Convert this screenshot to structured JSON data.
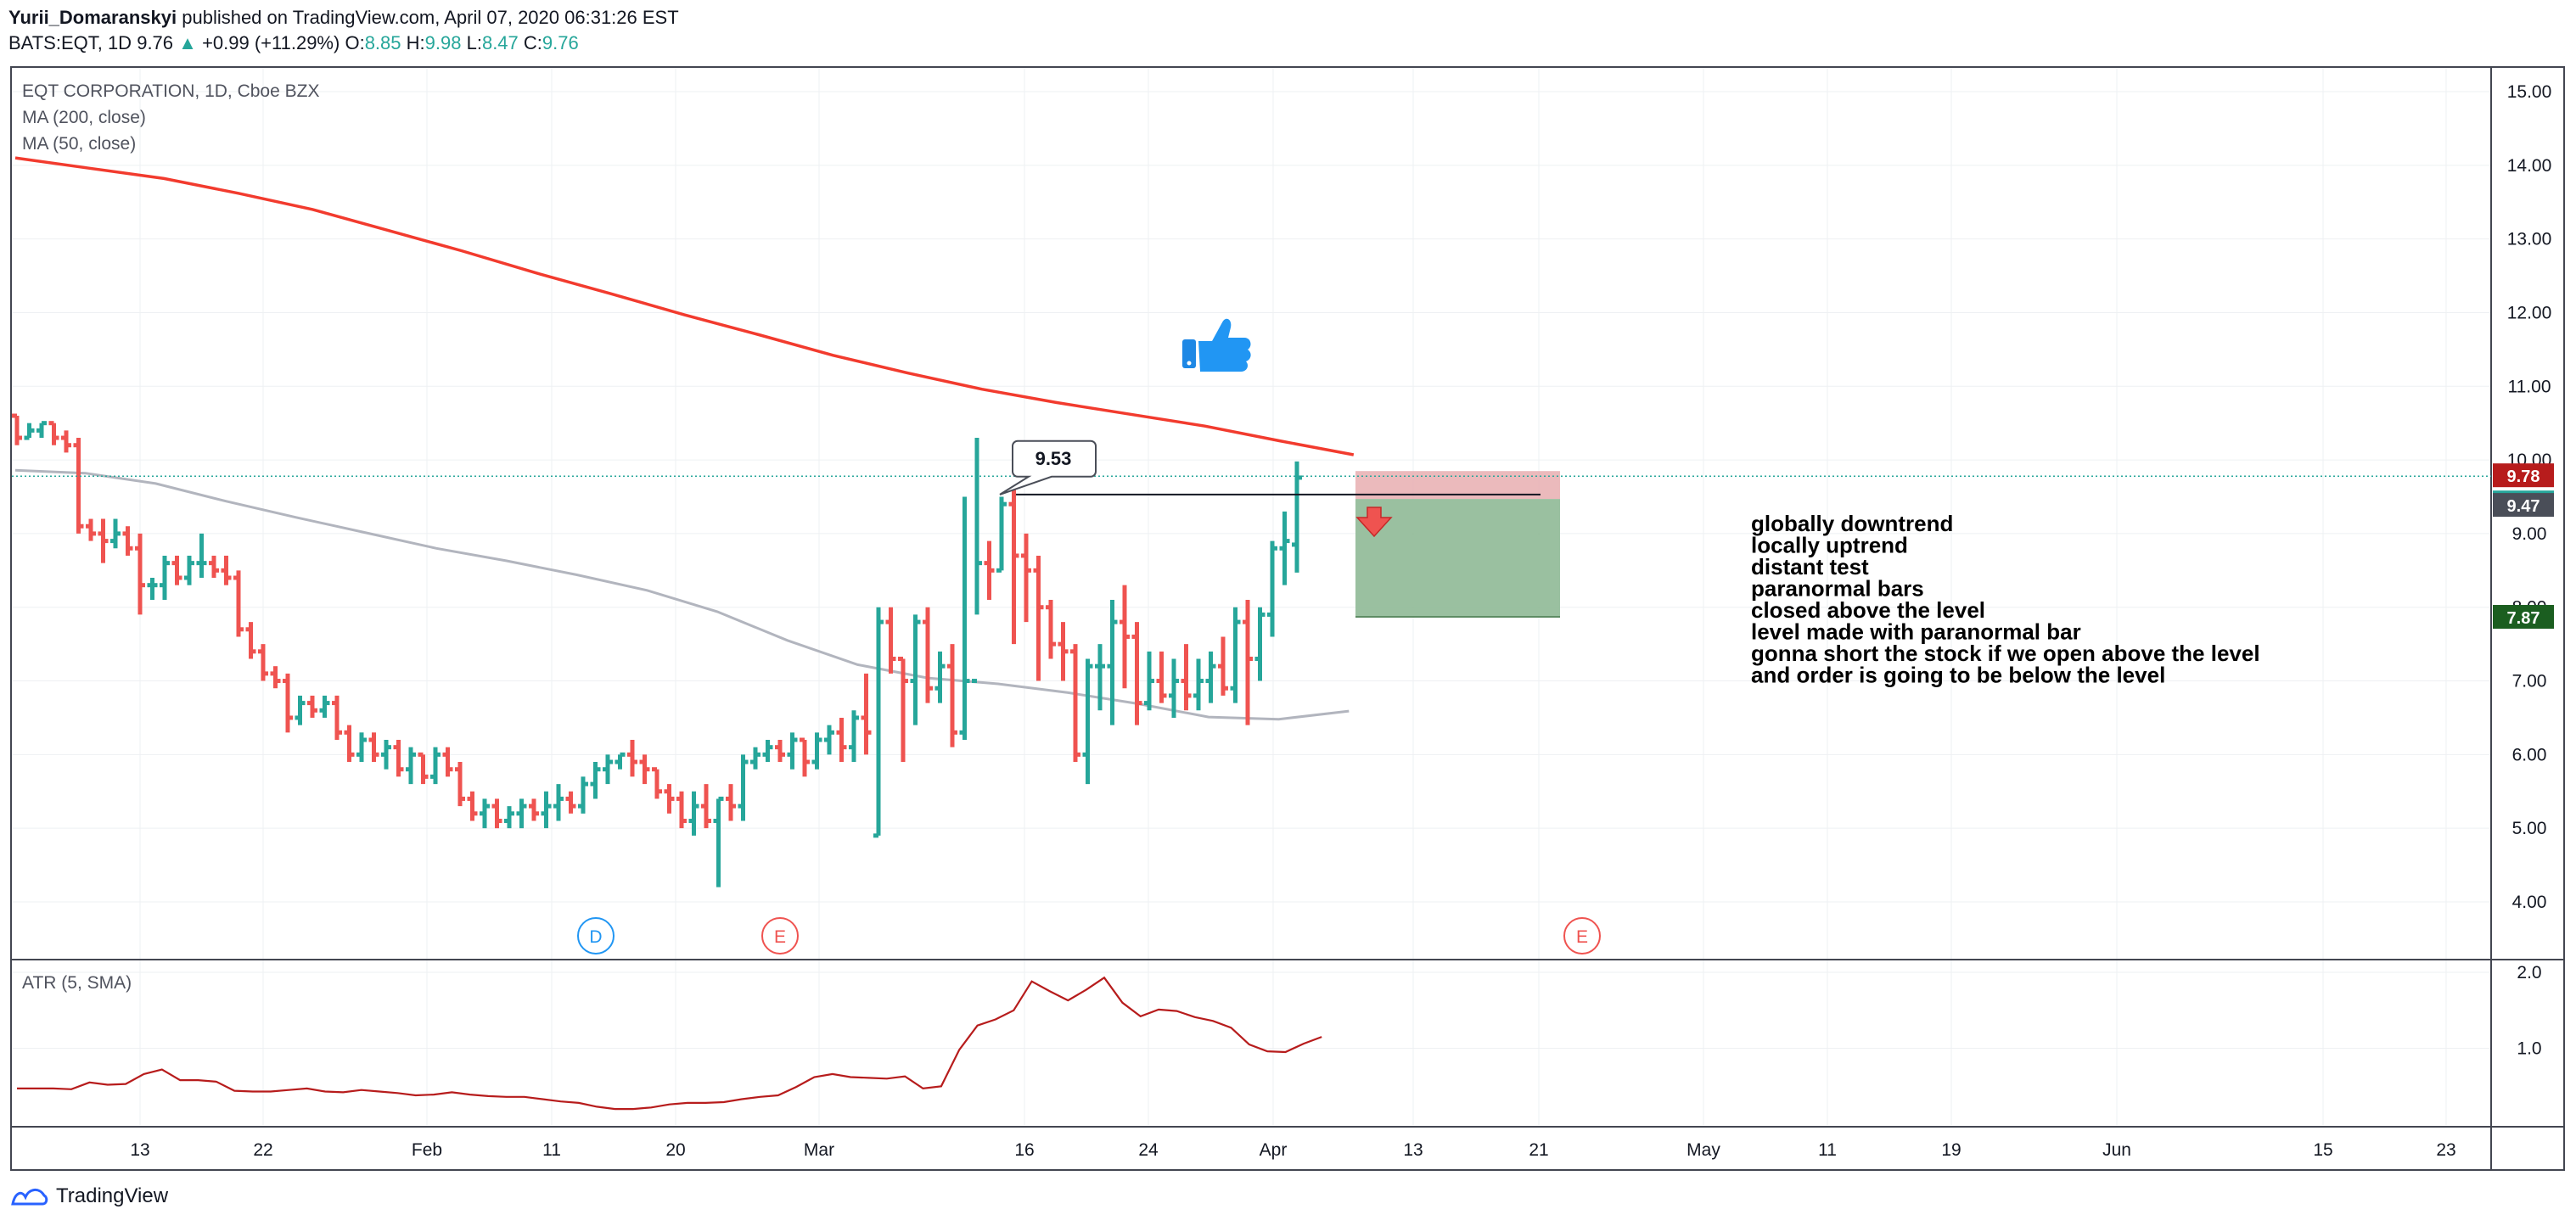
{
  "header": {
    "author": "Yurii_Domaranskyi",
    "published": "published on TradingView.com, April 07, 2020 06:31:26 EST",
    "symbol_line": "BATS:EQT, 1D",
    "last": "9.76",
    "change": "+0.99 (+11.29%)",
    "o_label": "O:",
    "o": "8.85",
    "h_label": "H:",
    "h": "9.98",
    "l_label": "L:",
    "l": "8.47",
    "c_label": "C:",
    "c": "9.76"
  },
  "legend": {
    "title": "EQT CORPORATION, 1D, Cboe BZX",
    "ma200": "MA (200, close)",
    "ma50": "MA (50, close)",
    "atr": "ATR (5, SMA)"
  },
  "footer": {
    "brand": "TradingView"
  },
  "colors": {
    "up": "#26a69a",
    "down": "#ef5350",
    "ma200": "#f23b2e",
    "ma50": "#b2b5be",
    "atr": "#b71c1c",
    "stop_zone": "#e8aeb0",
    "target_zone": "#8fb996"
  },
  "annotations": {
    "callout": "9.53",
    "note_lines": [
      "globally downtrend",
      "locally uptrend",
      "distant test",
      "paranormal bars",
      "closed above the level",
      "level made with paranormal bar",
      "gonna short the stock if we open above the level",
      "and order is going to be below the level"
    ],
    "icons": [
      "thumbs-up-icon",
      "arrow-down-icon"
    ]
  },
  "price_tags": [
    {
      "value": "9.78",
      "color": "#b71c1c"
    },
    {
      "value": "9.76",
      "color": "#26a69a"
    },
    {
      "value": "9.47",
      "color": "#4a4e58"
    },
    {
      "value": "7.87",
      "color": "#1b5e20"
    }
  ],
  "events": [
    {
      "label": "D",
      "color": "#2196f3"
    },
    {
      "label": "E",
      "color": "#ef5350"
    },
    {
      "label": "E",
      "color": "#ef5350"
    }
  ],
  "chart_data": {
    "type": "ohlc",
    "title": "EQT CORPORATION, 1D, Cboe BZX",
    "y_ticks": [
      "15.00",
      "14.00",
      "13.00",
      "12.00",
      "11.00",
      "10.00",
      "9.00",
      "8.00",
      "7.00",
      "6.00",
      "5.00",
      "4.00"
    ],
    "ylim": [
      3.6,
      15.3
    ],
    "atr_ticks": [
      "2.0",
      "1.0"
    ],
    "atr_ylim": [
      0,
      2.15
    ],
    "x_ticks": [
      "13",
      "22",
      "Feb",
      "11",
      "20",
      "Mar",
      "16",
      "24",
      "Apr",
      "13",
      "21",
      "May",
      "11",
      "19",
      "Jun",
      "15",
      "23"
    ],
    "grid": true,
    "bars": [
      [
        10.6,
        10.6,
        10.2,
        10.3
      ],
      [
        10.3,
        10.5,
        10.3,
        10.4
      ],
      [
        10.4,
        10.5,
        10.3,
        10.5
      ],
      [
        10.5,
        10.5,
        10.2,
        10.3
      ],
      [
        10.3,
        10.4,
        10.1,
        10.2
      ],
      [
        10.2,
        10.3,
        9.0,
        9.1
      ],
      [
        9.1,
        9.2,
        8.9,
        9.0
      ],
      [
        9.0,
        9.2,
        8.6,
        8.9
      ],
      [
        8.9,
        9.2,
        8.8,
        9.0
      ],
      [
        9.0,
        9.1,
        8.7,
        8.8
      ],
      [
        8.8,
        9.0,
        7.9,
        8.3
      ],
      [
        8.3,
        8.4,
        8.1,
        8.3
      ],
      [
        8.3,
        8.7,
        8.1,
        8.6
      ],
      [
        8.6,
        8.7,
        8.3,
        8.4
      ],
      [
        8.4,
        8.7,
        8.3,
        8.6
      ],
      [
        8.6,
        9.0,
        8.4,
        8.6
      ],
      [
        8.6,
        8.7,
        8.4,
        8.5
      ],
      [
        8.5,
        8.7,
        8.3,
        8.4
      ],
      [
        8.4,
        8.5,
        7.6,
        7.7
      ],
      [
        7.7,
        7.8,
        7.3,
        7.4
      ],
      [
        7.4,
        7.5,
        7.0,
        7.1
      ],
      [
        7.1,
        7.2,
        6.9,
        7.0
      ],
      [
        7.0,
        7.1,
        6.3,
        6.5
      ],
      [
        6.5,
        6.8,
        6.4,
        6.7
      ],
      [
        6.7,
        6.8,
        6.5,
        6.6
      ],
      [
        6.6,
        6.8,
        6.5,
        6.7
      ],
      [
        6.7,
        6.8,
        6.2,
        6.3
      ],
      [
        6.3,
        6.4,
        5.9,
        6.0
      ],
      [
        6.0,
        6.3,
        5.9,
        6.2
      ],
      [
        6.2,
        6.3,
        5.9,
        6.0
      ],
      [
        6.0,
        6.2,
        5.8,
        6.1
      ],
      [
        6.1,
        6.2,
        5.7,
        5.8
      ],
      [
        5.8,
        6.1,
        5.6,
        6.0
      ],
      [
        6.0,
        6.0,
        5.6,
        5.7
      ],
      [
        5.7,
        6.1,
        5.6,
        6.0
      ],
      [
        6.0,
        6.1,
        5.7,
        5.8
      ],
      [
        5.8,
        5.9,
        5.3,
        5.4
      ],
      [
        5.4,
        5.5,
        5.1,
        5.2
      ],
      [
        5.2,
        5.4,
        5.0,
        5.3
      ],
      [
        5.3,
        5.4,
        5.0,
        5.1
      ],
      [
        5.1,
        5.3,
        5.0,
        5.2
      ],
      [
        5.2,
        5.4,
        5.0,
        5.3
      ],
      [
        5.3,
        5.4,
        5.1,
        5.2
      ],
      [
        5.2,
        5.5,
        5.0,
        5.3
      ],
      [
        5.3,
        5.6,
        5.1,
        5.4
      ],
      [
        5.4,
        5.5,
        5.2,
        5.3
      ],
      [
        5.3,
        5.7,
        5.2,
        5.6
      ],
      [
        5.6,
        5.9,
        5.4,
        5.8
      ],
      [
        5.8,
        6.0,
        5.6,
        5.9
      ],
      [
        5.9,
        6.0,
        5.8,
        6.0
      ],
      [
        6.0,
        6.2,
        5.7,
        5.9
      ],
      [
        5.9,
        6.0,
        5.6,
        5.8
      ],
      [
        5.8,
        5.8,
        5.4,
        5.5
      ],
      [
        5.5,
        5.6,
        5.2,
        5.4
      ],
      [
        5.4,
        5.5,
        5.0,
        5.1
      ],
      [
        5.1,
        5.5,
        4.9,
        5.3
      ],
      [
        5.3,
        5.6,
        5.0,
        5.1
      ],
      [
        5.1,
        5.4,
        4.2,
        5.4
      ],
      [
        5.4,
        5.6,
        5.1,
        5.3
      ],
      [
        5.3,
        6.0,
        5.1,
        5.9
      ],
      [
        5.9,
        6.1,
        5.8,
        6.0
      ],
      [
        6.0,
        6.2,
        5.9,
        6.1
      ],
      [
        6.1,
        6.2,
        5.9,
        6.0
      ],
      [
        6.0,
        6.3,
        5.8,
        6.2
      ],
      [
        6.2,
        6.2,
        5.7,
        5.9
      ],
      [
        5.9,
        6.3,
        5.8,
        6.2
      ],
      [
        6.2,
        6.4,
        6.0,
        6.3
      ],
      [
        6.3,
        6.5,
        5.9,
        6.1
      ],
      [
        6.1,
        6.6,
        5.9,
        6.5
      ],
      [
        6.5,
        7.1,
        6.0,
        6.3
      ],
      [
        4.9,
        8.0,
        4.9,
        7.8
      ],
      [
        7.8,
        8.0,
        7.1,
        7.3
      ],
      [
        7.3,
        7.3,
        5.9,
        7.0
      ],
      [
        7.0,
        7.9,
        6.4,
        7.8
      ],
      [
        7.8,
        8.0,
        6.7,
        6.9
      ],
      [
        6.9,
        7.4,
        6.7,
        7.2
      ],
      [
        7.2,
        7.5,
        6.1,
        6.3
      ],
      [
        6.3,
        9.5,
        6.2,
        7.0
      ],
      [
        7.0,
        10.3,
        7.9,
        8.6
      ],
      [
        8.6,
        8.9,
        8.1,
        8.5
      ],
      [
        8.5,
        9.5,
        8.5,
        9.4
      ],
      [
        9.4,
        9.6,
        7.5,
        8.7
      ],
      [
        8.7,
        9.0,
        7.8,
        8.5
      ],
      [
        8.5,
        8.7,
        7.0,
        8.0
      ],
      [
        8.0,
        8.1,
        7.3,
        7.5
      ],
      [
        7.5,
        7.8,
        7.0,
        7.4
      ],
      [
        7.4,
        7.5,
        5.9,
        6.0
      ],
      [
        6.0,
        7.3,
        5.6,
        7.2
      ],
      [
        7.2,
        7.5,
        6.6,
        7.2
      ],
      [
        7.2,
        8.1,
        6.4,
        7.8
      ],
      [
        7.8,
        8.3,
        6.9,
        7.6
      ],
      [
        7.6,
        7.8,
        6.4,
        6.7
      ],
      [
        6.7,
        7.4,
        6.6,
        7.0
      ],
      [
        7.0,
        7.4,
        6.7,
        6.8
      ],
      [
        6.8,
        7.3,
        6.5,
        7.0
      ],
      [
        7.0,
        7.5,
        6.6,
        6.8
      ],
      [
        6.8,
        7.3,
        6.6,
        7.0
      ],
      [
        7.0,
        7.4,
        6.7,
        7.2
      ],
      [
        7.2,
        7.6,
        6.8,
        6.9
      ],
      [
        6.9,
        8.0,
        6.7,
        7.8
      ],
      [
        7.8,
        8.1,
        6.4,
        7.3
      ],
      [
        7.3,
        8.0,
        7.0,
        7.9
      ],
      [
        7.9,
        8.9,
        7.6,
        8.8
      ],
      [
        8.8,
        9.3,
        8.3,
        8.9
      ],
      [
        8.85,
        9.98,
        8.47,
        9.76
      ]
    ],
    "ma200": [
      14.1,
      13.96,
      13.82,
      13.62,
      13.4,
      13.12,
      12.84,
      12.54,
      12.26,
      11.97,
      11.7,
      11.42,
      11.18,
      10.96,
      10.78,
      10.62,
      10.46,
      10.26,
      10.07
    ],
    "ma50": [
      9.86,
      9.82,
      9.68,
      9.44,
      9.22,
      9.01,
      8.8,
      8.63,
      8.44,
      8.23,
      7.94,
      7.55,
      7.22,
      7.04,
      6.96,
      6.84,
      6.69,
      6.51,
      6.48,
      6.59
    ],
    "atr": [
      0.47,
      0.47,
      0.47,
      0.46,
      0.55,
      0.52,
      0.53,
      0.66,
      0.72,
      0.58,
      0.58,
      0.56,
      0.44,
      0.43,
      0.43,
      0.45,
      0.47,
      0.43,
      0.42,
      0.45,
      0.43,
      0.41,
      0.38,
      0.39,
      0.42,
      0.39,
      0.37,
      0.36,
      0.36,
      0.33,
      0.3,
      0.28,
      0.23,
      0.2,
      0.2,
      0.22,
      0.26,
      0.28,
      0.28,
      0.29,
      0.33,
      0.36,
      0.38,
      0.49,
      0.62,
      0.66,
      0.62,
      0.61,
      0.6,
      0.63,
      0.47,
      0.5,
      0.98,
      1.3,
      1.38,
      1.5,
      1.88,
      1.75,
      1.63,
      1.77,
      1.93,
      1.6,
      1.42,
      1.51,
      1.49,
      1.41,
      1.36,
      1.27,
      1.05,
      0.96,
      0.95,
      1.06,
      1.15
    ],
    "levels": {
      "line": 9.53,
      "entry": 9.47,
      "stop": 9.78,
      "target": 7.87
    }
  }
}
